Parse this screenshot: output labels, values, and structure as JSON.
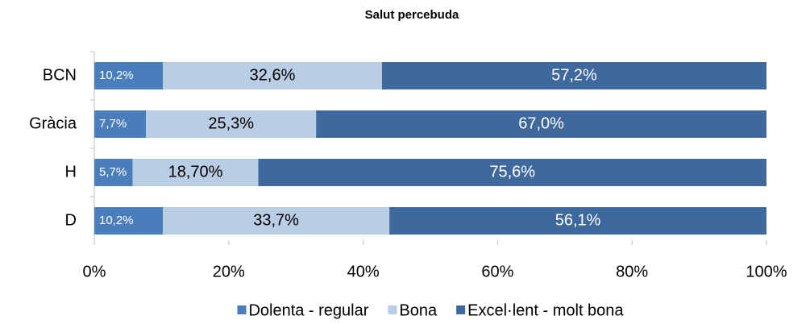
{
  "chart_data": {
    "type": "stacked_bar_horizontal",
    "title": "Salut percebuda",
    "categories": [
      "BCN",
      "Gràcia",
      "H",
      "D"
    ],
    "series": [
      {
        "name": "Dolenta - regular",
        "color": "#4a7ebb",
        "values": [
          10.2,
          7.7,
          5.7,
          10.2
        ],
        "value_labels": [
          "10,2%",
          "7,7%",
          "5,7%",
          "10,2%"
        ]
      },
      {
        "name": "Bona",
        "color": "#b9cde5",
        "values": [
          32.6,
          25.3,
          18.7,
          33.7
        ],
        "value_labels": [
          "32,6%",
          "25,3%",
          "18,70%",
          "33,7%"
        ]
      },
      {
        "name": "Excel·lent - molt bona",
        "color": "#3f689c",
        "values": [
          57.2,
          67.0,
          75.6,
          56.1
        ],
        "value_labels": [
          "57,2%",
          "67,0%",
          "75,6%",
          "56,1%"
        ]
      }
    ],
    "xlim": [
      0,
      100
    ],
    "xticks": [
      {
        "value": 0,
        "label": "0%"
      },
      {
        "value": 20,
        "label": "20%"
      },
      {
        "value": 40,
        "label": "40%"
      },
      {
        "value": 60,
        "label": "60%"
      },
      {
        "value": 80,
        "label": "80%"
      },
      {
        "value": 100,
        "label": "100%"
      }
    ],
    "grid": false,
    "legend": "bottom"
  }
}
